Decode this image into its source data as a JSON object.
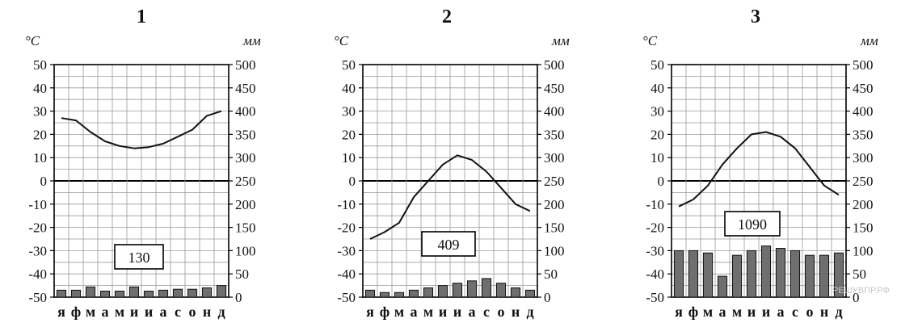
{
  "watermark": "РЕШУВПР.РФ",
  "chart_data": [
    {
      "type": "line",
      "title": "1",
      "y_left_unit": "°C",
      "y_right_unit": "мм",
      "ylim_left": [
        -50,
        50
      ],
      "ylim_right": [
        0,
        500
      ],
      "left_ticks": [
        "50",
        "40",
        "30",
        "20",
        "10",
        "0",
        "-10",
        "-20",
        "-30",
        "-40",
        "-50"
      ],
      "right_ticks": [
        "500",
        "450",
        "400",
        "350",
        "300",
        "250",
        "200",
        "150",
        "100",
        "50",
        "0"
      ],
      "categories": [
        "я",
        "ф",
        "м",
        "а",
        "м",
        "и",
        "и",
        "а",
        "с",
        "о",
        "н",
        "д"
      ],
      "temperature": [
        27,
        26,
        21,
        17,
        15,
        14,
        14.5,
        16,
        19,
        22,
        28,
        30
      ],
      "precipitation": [
        15,
        15,
        22,
        13,
        13,
        22,
        13,
        15,
        17,
        17,
        20,
        25
      ],
      "annotation": "130",
      "grid": true
    },
    {
      "type": "line",
      "title": "2",
      "y_left_unit": "°C",
      "y_right_unit": "мм",
      "ylim_left": [
        -50,
        50
      ],
      "ylim_right": [
        0,
        500
      ],
      "left_ticks": [
        "50",
        "40",
        "30",
        "20",
        "10",
        "0",
        "-10",
        "-20",
        "-30",
        "-40",
        "-50"
      ],
      "right_ticks": [
        "500",
        "450",
        "400",
        "350",
        "300",
        "250",
        "200",
        "150",
        "100",
        "50",
        "0"
      ],
      "categories": [
        "я",
        "ф",
        "м",
        "а",
        "м",
        "и",
        "и",
        "а",
        "с",
        "о",
        "н",
        "д"
      ],
      "temperature": [
        -25,
        -22,
        -18,
        -7,
        0,
        7,
        11,
        9,
        4,
        -3,
        -10,
        -13
      ],
      "precipitation": [
        15,
        10,
        10,
        15,
        20,
        25,
        30,
        35,
        40,
        30,
        20,
        15
      ],
      "annotation": "409",
      "grid": true
    },
    {
      "type": "line",
      "title": "3",
      "y_left_unit": "°C",
      "y_right_unit": "мм",
      "ylim_left": [
        -50,
        50
      ],
      "ylim_right": [
        0,
        500
      ],
      "left_ticks": [
        "50",
        "40",
        "30",
        "20",
        "10",
        "0",
        "-10",
        "-20",
        "-30",
        "-40",
        "-50"
      ],
      "right_ticks": [
        "500",
        "450",
        "400",
        "350",
        "300",
        "250",
        "200",
        "150",
        "100",
        "50",
        "0"
      ],
      "categories": [
        "я",
        "ф",
        "м",
        "а",
        "м",
        "и",
        "и",
        "а",
        "с",
        "о",
        "н",
        "д"
      ],
      "temperature": [
        -11,
        -8,
        -2,
        7,
        14,
        20,
        21,
        19,
        14,
        6,
        -2,
        -6
      ],
      "precipitation": [
        100,
        100,
        95,
        45,
        90,
        100,
        110,
        105,
        100,
        90,
        90,
        95
      ],
      "annotation": "1090",
      "grid": true
    }
  ]
}
